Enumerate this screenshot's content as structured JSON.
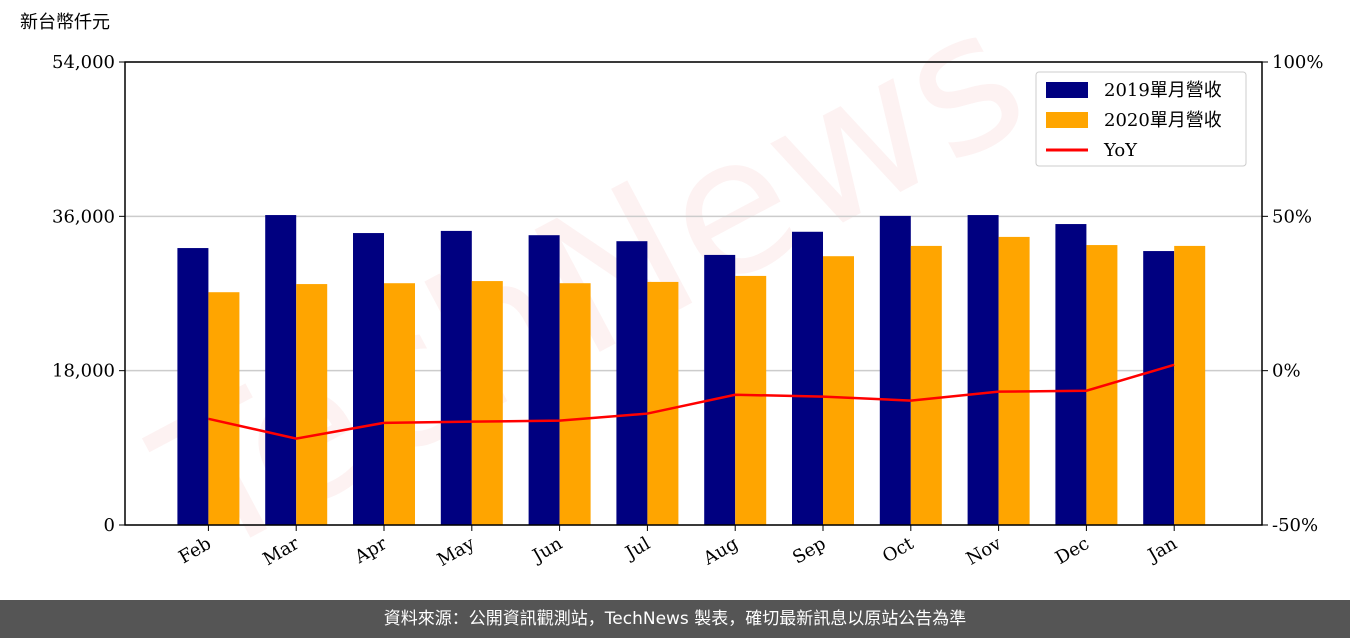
{
  "chart_data": {
    "type": "bar",
    "y_label": "新台幣仟元",
    "watermark": "TechNews",
    "categories": [
      "Feb",
      "Mar",
      "Apr",
      "May",
      "Jun",
      "Jul",
      "Aug",
      "Sep",
      "Oct",
      "Nov",
      "Dec",
      "Jan"
    ],
    "series": [
      {
        "name": "2019單月營收",
        "color": "#000080",
        "values": [
          32300,
          36150,
          34050,
          34300,
          33800,
          33100,
          31500,
          34200,
          36050,
          36150,
          35100,
          31950
        ]
      },
      {
        "name": "2020單月營收",
        "color": "#ffa500",
        "values": [
          27150,
          28100,
          28200,
          28450,
          28200,
          28350,
          29050,
          31350,
          32550,
          33600,
          32650,
          32550
        ]
      },
      {
        "name": "YoY",
        "type": "line",
        "axis": "y2",
        "color": "#ff0000",
        "values": [
          -15.6,
          -22.0,
          -16.9,
          -16.5,
          -16.2,
          -13.9,
          -7.8,
          -8.4,
          -9.7,
          -6.8,
          -6.5,
          1.9
        ]
      }
    ],
    "ylim": [
      0,
      54000
    ],
    "yticks": [
      {
        "value": 0,
        "label": "0"
      },
      {
        "value": 18000,
        "label": "18,000"
      },
      {
        "value": 36000,
        "label": "36,000"
      },
      {
        "value": 54000,
        "label": "54,000"
      }
    ],
    "y2lim": [
      -50,
      100
    ],
    "y2ticks": [
      {
        "value": -50,
        "label": "-50%"
      },
      {
        "value": 0,
        "label": "0%"
      },
      {
        "value": 50,
        "label": "50%"
      },
      {
        "value": 100,
        "label": "100%"
      }
    ],
    "grid": true,
    "legend": "upper right"
  },
  "footer": "資料來源：公開資訊觀測站，TechNews 製表，確切最新訊息以原站公告為準"
}
